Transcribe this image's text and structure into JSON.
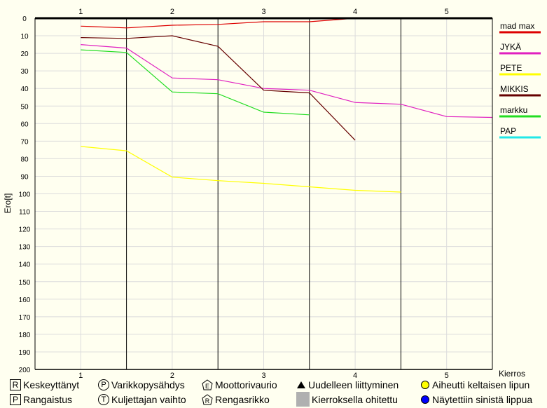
{
  "chart_data": {
    "type": "line",
    "xlabel": "Kierros",
    "ylabel": "Ero[t]",
    "xlim": [
      0.5,
      5.5
    ],
    "ylim": [
      0,
      200
    ],
    "y_inverted": true,
    "x_ticks": [
      "1",
      "2",
      "3",
      "4",
      "5"
    ],
    "y_ticks": [
      "0",
      "10",
      "20",
      "30",
      "40",
      "50",
      "60",
      "70",
      "80",
      "90",
      "100",
      "110",
      "120",
      "130",
      "140",
      "150",
      "160",
      "170",
      "180",
      "190",
      "200"
    ],
    "pit_boundaries": [
      1.5,
      2.5,
      3.5,
      4.5
    ],
    "grid": true,
    "legend_position": "right",
    "series": [
      {
        "name": "mad max",
        "color": "#dd0000",
        "points": [
          [
            1,
            4.5
          ],
          [
            1.5,
            5.5
          ],
          [
            2,
            4
          ],
          [
            2.5,
            3.5
          ],
          [
            3,
            2
          ],
          [
            3.5,
            2
          ],
          [
            4,
            0
          ],
          [
            4.5,
            0
          ],
          [
            5,
            0
          ],
          [
            5.5,
            0
          ]
        ]
      },
      {
        "name": "JYKÄ",
        "color": "#e020c0",
        "points": [
          [
            1,
            15
          ],
          [
            1.5,
            17
          ],
          [
            2,
            34
          ],
          [
            2.5,
            35
          ],
          [
            3,
            40
          ],
          [
            3.5,
            41
          ],
          [
            4,
            48
          ],
          [
            4.5,
            49
          ],
          [
            5,
            56
          ],
          [
            5.5,
            56.5
          ]
        ]
      },
      {
        "name": "PETE",
        "color": "#ffff00",
        "points": [
          [
            1,
            73
          ],
          [
            1.5,
            75.5
          ],
          [
            2,
            90.5
          ],
          [
            2.5,
            92.5
          ],
          [
            3,
            94
          ],
          [
            3.5,
            96
          ],
          [
            4,
            98
          ],
          [
            4.5,
            99
          ]
        ]
      },
      {
        "name": "MIKKIS",
        "color": "#660000",
        "points": [
          [
            1,
            11
          ],
          [
            1.5,
            11.5
          ],
          [
            2,
            10
          ],
          [
            2.5,
            16
          ],
          [
            3,
            41
          ],
          [
            3.5,
            42.5
          ],
          [
            4,
            69.5
          ]
        ]
      },
      {
        "name": "markku",
        "color": "#22dd22",
        "points": [
          [
            1,
            18
          ],
          [
            1.5,
            19.5
          ],
          [
            2,
            42
          ],
          [
            2.5,
            43
          ],
          [
            3,
            53.5
          ],
          [
            3.5,
            55
          ]
        ]
      },
      {
        "name": "PAP",
        "color": "#22e8e8",
        "points": []
      }
    ]
  },
  "legend_bottom": [
    {
      "symbol": "box-letter",
      "glyph": "R",
      "label": "Keskeyttänyt"
    },
    {
      "symbol": "circle-letter",
      "glyph": "P",
      "label": "Varikkopysähdys"
    },
    {
      "symbol": "pentagon-letter",
      "glyph": "E",
      "label": "Moottorivaurio"
    },
    {
      "symbol": "triangle",
      "glyph": "",
      "label": "Uudelleen liittyminen"
    },
    {
      "symbol": "yellow-dot",
      "glyph": "",
      "label": "Aiheutti keltaisen lipun",
      "color": "#ffff00"
    },
    {
      "symbol": "box-letter",
      "glyph": "P",
      "label": "Rangaistus"
    },
    {
      "symbol": "circle-letter",
      "glyph": "T",
      "label": "Kuljettajan vaihto"
    },
    {
      "symbol": "pentagon-letter",
      "glyph": "R",
      "label": "Rengasrikko"
    },
    {
      "symbol": "gray-box",
      "glyph": "",
      "label": "Kierroksella ohitettu",
      "color": "#b0b0b0"
    },
    {
      "symbol": "blue-dot",
      "glyph": "",
      "label": "Näytettiin sinistä lippua",
      "color": "#0000ff"
    }
  ]
}
